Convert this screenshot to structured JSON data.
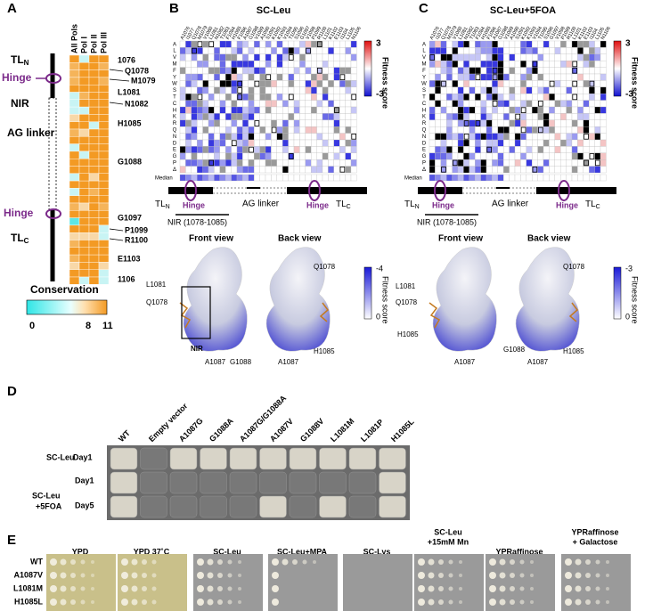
{
  "panel_a": {
    "label": "A",
    "columns": [
      "All Pols",
      "Pol I",
      "Pol II",
      "Pol III"
    ],
    "residues": [
      "1076",
      "Q1078",
      "M1079",
      "L1081",
      "N1082",
      "H1085",
      "G1088",
      "G1097",
      "P1099",
      "R1100",
      "E1103",
      "1106"
    ],
    "regions": {
      "tl": "TL",
      "n": "N",
      "hinge": "Hinge",
      "nir": "NIR",
      "ag_linker": "AG linker",
      "hinge_2": "Hinge",
      "tl_2": "TL",
      "c": "C"
    },
    "colorbar_title": "Conservation",
    "colorbar_ticks": [
      "0",
      "8",
      "11"
    ]
  },
  "panel_b": {
    "label": "B",
    "title": "SC-Leu",
    "residues": [
      "A1076",
      "I1077",
      "Q1078",
      "M1079",
      "V1080",
      "L1081",
      "N1082",
      "T1083",
      "F1084",
      "H1085",
      "F1086",
      "A1087",
      "G1088",
      "V1089",
      "A1090",
      "S1091",
      "K1092",
      "K1093",
      "V1094",
      "T1095",
      "S1096",
      "G1097",
      "V1098",
      "P1099",
      "R1100",
      "L1101",
      "K1102",
      "E1103",
      "I1104",
      "L1105",
      "N1106"
    ],
    "amino_acids": [
      "A",
      "L",
      "V",
      "M",
      "F",
      "Y",
      "W",
      "S",
      "T",
      "C",
      "H",
      "K",
      "R",
      "Q",
      "N",
      "D",
      "E",
      "G",
      "P",
      "Δ"
    ],
    "median": "Median",
    "colorbar_ticks": [
      "3",
      "-3"
    ],
    "colorbar_title": "Fitness score",
    "domain": {
      "tl": "TL",
      "n": "N",
      "hinge": "Hinge",
      "ag_linker": "AG linker",
      "hinge_2": "Hinge",
      "tl_2": "TL",
      "c": "C",
      "nir": "NIR (1078-1085)"
    },
    "views": [
      "Front view",
      "Back view"
    ],
    "structure_labels": [
      "L1081",
      "Q1078",
      "NIR",
      "A1087",
      "G1088",
      "A1087",
      "H1085",
      "Q1078"
    ],
    "structure_colorbar_ticks": [
      "-4",
      "0"
    ],
    "structure_colorbar_title": "Fitness score"
  },
  "panel_c": {
    "label": "C",
    "title": "SC-Leu+5FOA",
    "residues": [
      "A1076",
      "I1077",
      "Q1078",
      "M1079",
      "V1080",
      "L1081",
      "N1082",
      "T1083",
      "F1084",
      "H1085",
      "F1086",
      "A1087",
      "G1088",
      "V1089",
      "A1090",
      "S1091",
      "K1092",
      "K1093",
      "V1094",
      "T1095",
      "S1096",
      "G1097",
      "V1098",
      "P1099",
      "R1100",
      "L1101",
      "K1102",
      "E1103",
      "I1104",
      "L1105",
      "N1106"
    ],
    "amino_acids": [
      "A",
      "L",
      "V",
      "M",
      "F",
      "Y",
      "W",
      "S",
      "T",
      "C",
      "H",
      "K",
      "R",
      "Q",
      "N",
      "D",
      "E",
      "G",
      "P",
      "Δ"
    ],
    "median": "Median",
    "colorbar_ticks": [
      "3",
      "-3"
    ],
    "colorbar_title": "Fitness score",
    "domain": {
      "tl": "TL",
      "n": "N",
      "hinge": "Hinge",
      "ag_linker": "AG linker",
      "hinge_2": "Hinge",
      "tl_2": "TL",
      "c": "C",
      "nir": "NIR (1078-1085)"
    },
    "views": [
      "Front view",
      "Back view"
    ],
    "structure_labels": [
      "L1081",
      "Q1078",
      "H1085",
      "A1087",
      "G1088",
      "A1087",
      "H1085",
      "Q1078"
    ],
    "structure_colorbar_ticks": [
      "-3",
      "0"
    ],
    "structure_colorbar_title": "Fitness score"
  },
  "panel_d": {
    "label": "D",
    "strains": [
      "WT",
      "Empty vector",
      "A1087G",
      "G1088A",
      "A1087G/G1088A",
      "A1087V",
      "G1088V",
      "L1081M",
      "L1081P",
      "H1085L"
    ],
    "media": [
      "SC-Leu",
      "SC-Leu",
      "+5FOA"
    ],
    "days": [
      "Day1",
      "Day1",
      "Day5"
    ]
  },
  "panel_e": {
    "label": "E",
    "conditions": [
      [
        "YPD"
      ],
      [
        "YPD 37˚C"
      ],
      [
        "SC-Leu"
      ],
      [
        "SC-Leu+MPA"
      ],
      [
        "SC-Lys"
      ],
      [
        "SC-Leu",
        "+15mM Mn"
      ],
      [
        "YPRaffinose"
      ],
      [
        "YPRaffinose",
        "+ Galactose"
      ]
    ],
    "strains": [
      "WT",
      "A1087V",
      "L1081M",
      "H1085L"
    ]
  }
}
